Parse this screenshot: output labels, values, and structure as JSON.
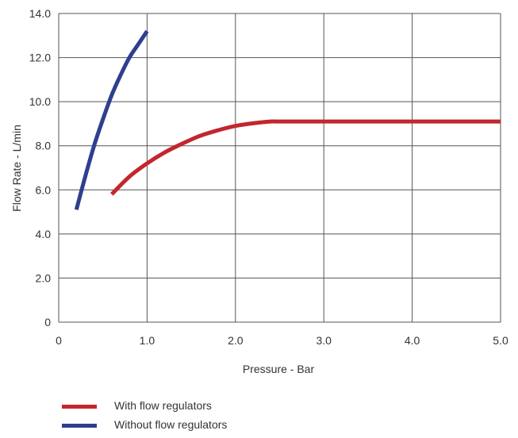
{
  "chart_data": {
    "type": "line",
    "xlabel": "Pressure - Bar",
    "ylabel": "Flow Rate - L/min",
    "xlim": [
      0,
      5
    ],
    "ylim": [
      0,
      14
    ],
    "xticks": [
      "0",
      "1.0",
      "2.0",
      "3.0",
      "4.0",
      "5.0"
    ],
    "yticks": [
      "0",
      "2.0",
      "4.0",
      "6.0",
      "8.0",
      "10.0",
      "12.0",
      "14.0"
    ],
    "grid": true,
    "legend_position": "bottom-left",
    "series": [
      {
        "name": "With flow regulators",
        "color": "#c1272d",
        "x": [
          0.6,
          0.8,
          1.0,
          1.2,
          1.4,
          1.6,
          1.8,
          2.0,
          2.2,
          2.4,
          2.5,
          3.0,
          4.0,
          5.0
        ],
        "y": [
          5.8,
          6.6,
          7.2,
          7.7,
          8.1,
          8.45,
          8.7,
          8.9,
          9.02,
          9.1,
          9.1,
          9.1,
          9.1,
          9.1
        ]
      },
      {
        "name": "Without flow regulators",
        "color": "#2e3f8f",
        "x": [
          0.2,
          0.3,
          0.4,
          0.5,
          0.6,
          0.7,
          0.8,
          0.9,
          1.0
        ],
        "y": [
          5.1,
          6.6,
          8.0,
          9.2,
          10.3,
          11.2,
          12.0,
          12.6,
          13.2
        ]
      }
    ]
  }
}
